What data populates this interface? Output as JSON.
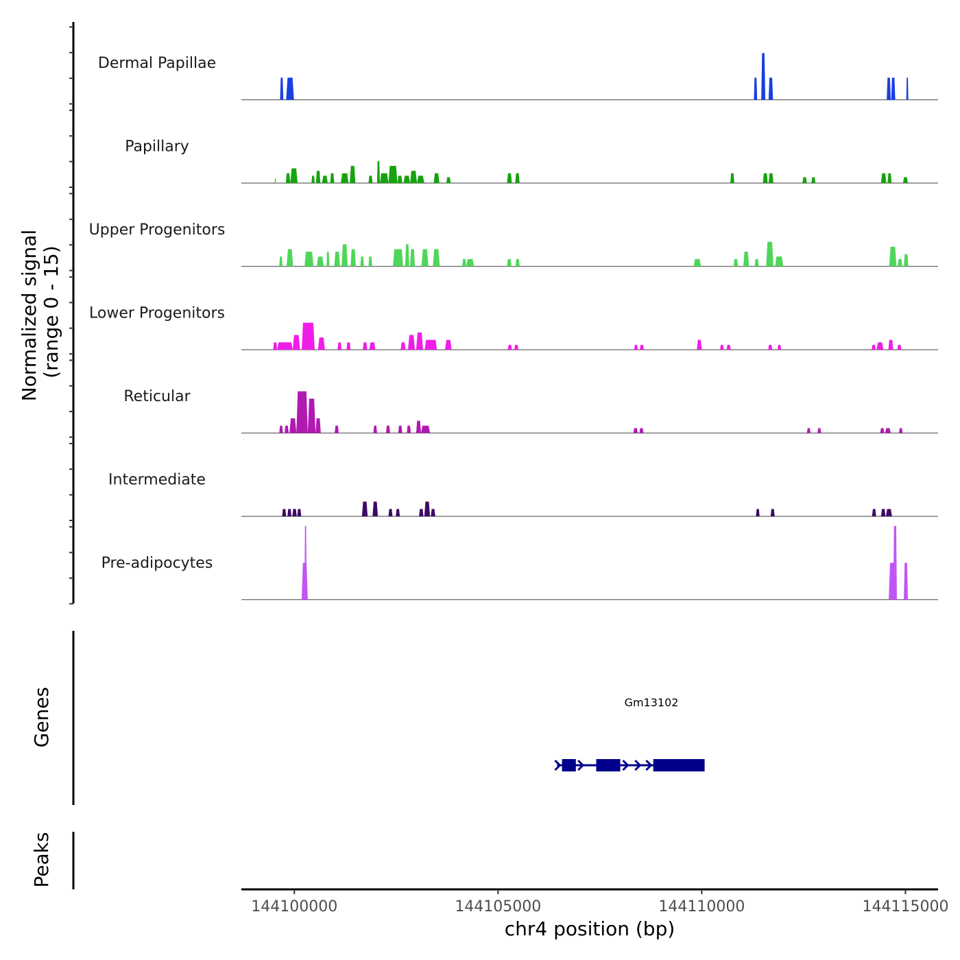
{
  "chart_data": {
    "type": "area",
    "title": "",
    "ylabel_line1": "Normalized signal",
    "ylabel_line2": "(range 0 - 15)",
    "xlabel": "chr4 position (bp)",
    "xlim": [
      144098700,
      144115800
    ],
    "ylim": [
      0,
      15
    ],
    "x_ticks": [
      144100000,
      144105000,
      144110000,
      144115000
    ],
    "x_tick_labels": [
      "144100000",
      "144105000",
      "144110000",
      "144115000"
    ],
    "tracks": [
      {
        "name": "Dermal Papillae",
        "color": "#1a3fe0",
        "peaks": [
          [
            144099650,
            144099730,
            4.5
          ],
          [
            144099800,
            144099990,
            4.5
          ],
          [
            144111280,
            144111360,
            4.5
          ],
          [
            144111460,
            144111560,
            9.5
          ],
          [
            144111640,
            144111750,
            4.5
          ],
          [
            144114540,
            144114640,
            4.5
          ],
          [
            144114650,
            144114750,
            4.5
          ],
          [
            144115020,
            144115070,
            4.5
          ]
        ]
      },
      {
        "name": "Papillary",
        "color": "#17a30f",
        "peaks": [
          [
            144099520,
            144099540,
            1
          ],
          [
            144099790,
            144099900,
            2
          ],
          [
            144099900,
            144100080,
            3
          ],
          [
            144100420,
            144100500,
            1.5
          ],
          [
            144100530,
            144100640,
            2.5
          ],
          [
            144100680,
            144100820,
            1.5
          ],
          [
            144100880,
            144100980,
            2
          ],
          [
            144101140,
            144101330,
            2
          ],
          [
            144101360,
            144101500,
            3.5
          ],
          [
            144101820,
            144101920,
            1.5
          ],
          [
            144102030,
            144102100,
            4.5
          ],
          [
            144102100,
            144102310,
            2
          ],
          [
            144102310,
            144102530,
            3.5
          ],
          [
            144102530,
            144102650,
            1.5
          ],
          [
            144102680,
            144102840,
            1.5
          ],
          [
            144102840,
            144103010,
            2.5
          ],
          [
            144103010,
            144103190,
            1.5
          ],
          [
            144103420,
            144103560,
            2
          ],
          [
            144103730,
            144103840,
            1.2
          ],
          [
            144105220,
            144105340,
            2
          ],
          [
            144105420,
            144105530,
            2
          ],
          [
            144110700,
            144110800,
            2
          ],
          [
            144111500,
            144111620,
            2
          ],
          [
            144111640,
            144111760,
            2
          ],
          [
            144112470,
            144112580,
            1.2
          ],
          [
            144112690,
            144112790,
            1.2
          ],
          [
            144114400,
            144114530,
            2
          ],
          [
            144114560,
            144114660,
            2
          ],
          [
            144114940,
            144115060,
            1.2
          ]
        ]
      },
      {
        "name": "Upper Progenitors",
        "color": "#4fd65a",
        "peaks": [
          [
            144099630,
            144099710,
            2
          ],
          [
            144099810,
            144099970,
            3.5
          ],
          [
            144100250,
            144100470,
            3
          ],
          [
            144100550,
            144100720,
            2
          ],
          [
            144100790,
            144100860,
            3
          ],
          [
            144100980,
            144101120,
            3
          ],
          [
            144101160,
            144101310,
            4.5
          ],
          [
            144101380,
            144101510,
            3.5
          ],
          [
            144101620,
            144101710,
            2
          ],
          [
            144101820,
            144101910,
            2
          ],
          [
            144102420,
            144102670,
            3.5
          ],
          [
            144102720,
            144102820,
            4.5
          ],
          [
            144102840,
            144102960,
            3.5
          ],
          [
            144103120,
            144103290,
            3.5
          ],
          [
            144103400,
            144103570,
            3.5
          ],
          [
            144104120,
            144104220,
            1.5
          ],
          [
            144104220,
            144104410,
            1.5
          ],
          [
            144105220,
            144105330,
            1.5
          ],
          [
            144105430,
            144105530,
            1.5
          ],
          [
            144109800,
            144109980,
            1.5
          ],
          [
            144110780,
            144110890,
            1.5
          ],
          [
            144111020,
            144111160,
            3
          ],
          [
            144111300,
            144111400,
            1.5
          ],
          [
            144111580,
            144111760,
            5
          ],
          [
            144111800,
            144112000,
            2
          ],
          [
            144114600,
            144114780,
            4
          ],
          [
            144114810,
            144114920,
            1.5
          ],
          [
            144114960,
            144115070,
            2.5
          ]
        ]
      },
      {
        "name": "Lower Progenitors",
        "color": "#f01de8",
        "peaks": [
          [
            144099480,
            144099580,
            1.5
          ],
          [
            144099580,
            144099960,
            1.5
          ],
          [
            144099960,
            144100140,
            3
          ],
          [
            144100180,
            144100500,
            5.5
          ],
          [
            144100580,
            144100750,
            2.5
          ],
          [
            144101060,
            144101160,
            1.5
          ],
          [
            144101280,
            144101380,
            1.5
          ],
          [
            144101680,
            144101790,
            1.5
          ],
          [
            144101840,
            144101990,
            1.5
          ],
          [
            144102610,
            144102730,
            1.5
          ],
          [
            144102790,
            144102960,
            3
          ],
          [
            144102990,
            144103160,
            3.5
          ],
          [
            144103200,
            144103500,
            2
          ],
          [
            144103700,
            144103860,
            2
          ],
          [
            144105240,
            144105340,
            1
          ],
          [
            144105400,
            144105500,
            1
          ],
          [
            144108340,
            144108430,
            1
          ],
          [
            144108480,
            144108580,
            1
          ],
          [
            144109880,
            144110000,
            2
          ],
          [
            144110450,
            144110540,
            1
          ],
          [
            144110610,
            144110710,
            1
          ],
          [
            144111630,
            144111730,
            1
          ],
          [
            144111860,
            144111950,
            1
          ],
          [
            144114170,
            144114270,
            1
          ],
          [
            144114290,
            144114460,
            1.5
          ],
          [
            144114580,
            144114700,
            2
          ],
          [
            144114800,
            144114900,
            1
          ]
        ]
      },
      {
        "name": "Reticular",
        "color": "#b01ab0",
        "peaks": [
          [
            144099630,
            144099720,
            1.5
          ],
          [
            144099760,
            144099860,
            1.5
          ],
          [
            144099880,
            144100050,
            3
          ],
          [
            144100050,
            144100330,
            8.5
          ],
          [
            144100330,
            144100520,
            7
          ],
          [
            144100520,
            144100650,
            3
          ],
          [
            144100990,
            144101090,
            1.5
          ],
          [
            144101940,
            144102030,
            1.5
          ],
          [
            144102250,
            144102350,
            1.5
          ],
          [
            144102550,
            144102650,
            1.5
          ],
          [
            144102760,
            144102860,
            1.5
          ],
          [
            144102990,
            144103110,
            2.5
          ],
          [
            144103110,
            144103330,
            1.5
          ],
          [
            144108320,
            144108430,
            1
          ],
          [
            144108470,
            144108570,
            1
          ],
          [
            144112580,
            144112670,
            1
          ],
          [
            144112840,
            144112930,
            1
          ],
          [
            144114380,
            144114480,
            1
          ],
          [
            144114500,
            144114640,
            1
          ],
          [
            144114840,
            144114930,
            1
          ]
        ]
      },
      {
        "name": "Intermediate",
        "color": "#3d0a66",
        "peaks": [
          [
            144099700,
            144099800,
            1.5
          ],
          [
            144099830,
            144099930,
            1.5
          ],
          [
            144099950,
            144100060,
            1.5
          ],
          [
            144100070,
            144100170,
            1.5
          ],
          [
            144101660,
            144101800,
            3
          ],
          [
            144101920,
            144102050,
            3
          ],
          [
            144102310,
            144102410,
            1.5
          ],
          [
            144102490,
            144102590,
            1.5
          ],
          [
            144103060,
            144103170,
            1.5
          ],
          [
            144103190,
            144103330,
            3
          ],
          [
            144103350,
            144103460,
            1.5
          ],
          [
            144111330,
            144111420,
            1.5
          ],
          [
            144111690,
            144111790,
            1.5
          ],
          [
            144114180,
            144114280,
            1.5
          ],
          [
            144114400,
            144114510,
            1.5
          ],
          [
            144114520,
            144114670,
            1.5
          ]
        ]
      },
      {
        "name": "Pre-adipocytes",
        "color": "#c255f5",
        "peaks": [
          [
            144100180,
            144100330,
            7.5
          ],
          [
            144100250,
            144100300,
            15
          ],
          [
            144114590,
            144114750,
            7.5
          ],
          [
            144114700,
            144114790,
            15
          ],
          [
            144114960,
            144115060,
            7.5
          ]
        ]
      }
    ],
    "genes_track_label": "Genes",
    "peaks_track_label": "Peaks",
    "genes": [
      {
        "name": "Gm13102",
        "strand": "+",
        "color": "#00008b",
        "start": 144106450,
        "end": 144110070,
        "exons": [
          [
            144106570,
            144106910
          ],
          [
            144107410,
            144108000
          ],
          [
            144108810,
            144110070
          ]
        ]
      }
    ]
  }
}
